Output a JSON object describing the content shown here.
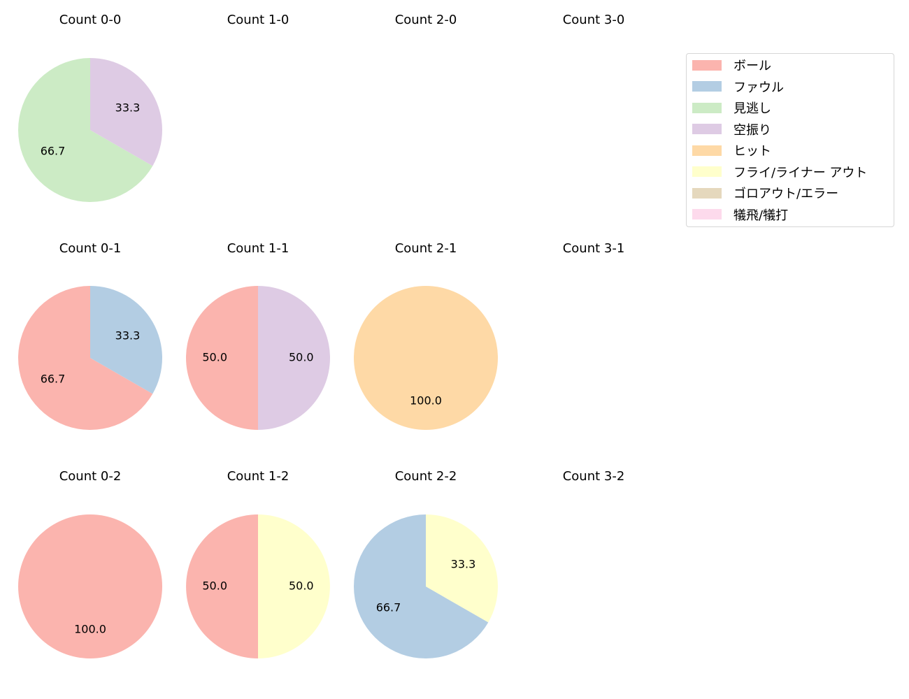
{
  "chart_data": {
    "type": "pie",
    "title": "",
    "legend": {
      "position": "upper right",
      "entries": [
        {
          "label": "ボール",
          "color": "#fbb4ae"
        },
        {
          "label": "ファウル",
          "color": "#b3cde3"
        },
        {
          "label": "見逃し",
          "color": "#ccebc5"
        },
        {
          "label": "空振り",
          "color": "#decbe4"
        },
        {
          "label": "ヒット",
          "color": "#fed9a6"
        },
        {
          "label": "フライ/ライナー アウト",
          "color": "#ffffcc"
        },
        {
          "label": "ゴロアウト/エラー",
          "color": "#e5d8bd"
        },
        {
          "label": "犠飛/犠打",
          "color": "#fddaec"
        }
      ]
    },
    "subplots": [
      {
        "title": "Count 0-0",
        "row": 0,
        "col": 0,
        "slices": [
          {
            "label": "見逃し",
            "value": 66.7
          },
          {
            "label": "空振り",
            "value": 33.3
          }
        ]
      },
      {
        "title": "Count 1-0",
        "row": 0,
        "col": 1,
        "slices": []
      },
      {
        "title": "Count 2-0",
        "row": 0,
        "col": 2,
        "slices": []
      },
      {
        "title": "Count 3-0",
        "row": 0,
        "col": 3,
        "slices": []
      },
      {
        "title": "Count 0-1",
        "row": 1,
        "col": 0,
        "slices": [
          {
            "label": "ボール",
            "value": 66.7
          },
          {
            "label": "ファウル",
            "value": 33.3
          }
        ]
      },
      {
        "title": "Count 1-1",
        "row": 1,
        "col": 1,
        "slices": [
          {
            "label": "ボール",
            "value": 50.0
          },
          {
            "label": "空振り",
            "value": 50.0
          }
        ]
      },
      {
        "title": "Count 2-1",
        "row": 1,
        "col": 2,
        "slices": [
          {
            "label": "ヒット",
            "value": 100.0
          }
        ]
      },
      {
        "title": "Count 3-1",
        "row": 1,
        "col": 3,
        "slices": []
      },
      {
        "title": "Count 0-2",
        "row": 2,
        "col": 0,
        "slices": [
          {
            "label": "ボール",
            "value": 100.0
          }
        ]
      },
      {
        "title": "Count 1-2",
        "row": 2,
        "col": 1,
        "slices": [
          {
            "label": "ボール",
            "value": 50.0
          },
          {
            "label": "フライ/ライナー アウト",
            "value": 50.0
          }
        ]
      },
      {
        "title": "Count 2-2",
        "row": 2,
        "col": 2,
        "slices": [
          {
            "label": "ファウル",
            "value": 66.7
          },
          {
            "label": "フライ/ライナー アウト",
            "value": 33.3
          }
        ]
      },
      {
        "title": "Count 3-2",
        "row": 2,
        "col": 3,
        "slices": []
      }
    ]
  }
}
